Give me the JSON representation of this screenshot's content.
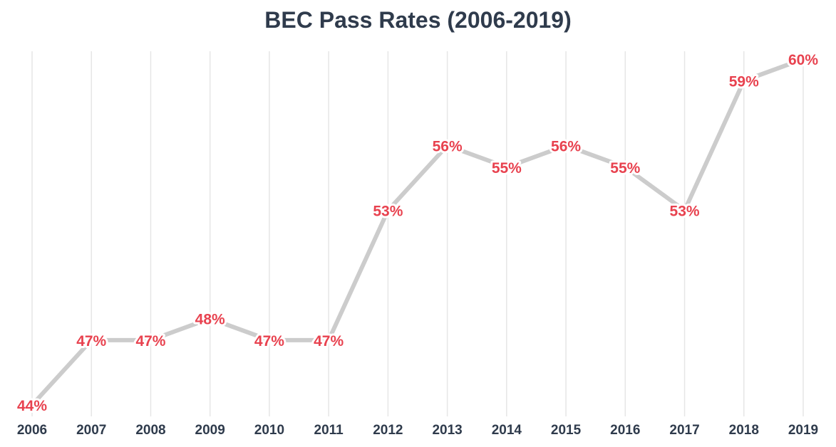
{
  "colors": {
    "title": "#2f3b4c",
    "tick": "#2f3b4c",
    "label": "#e8424f",
    "line": "#cccccc",
    "grid": "#e6e6e6"
  },
  "chart_data": {
    "type": "line",
    "title": "BEC Pass Rates (2006-2019)",
    "xlabel": "",
    "ylabel": "",
    "grid": "vertical",
    "categories": [
      "2006",
      "2007",
      "2008",
      "2009",
      "2010",
      "2011",
      "2012",
      "2013",
      "2014",
      "2015",
      "2016",
      "2017",
      "2018",
      "2019"
    ],
    "series": [
      {
        "values": [
          44,
          47,
          47,
          48,
          47,
          47,
          53,
          56,
          55,
          56,
          55,
          53,
          59,
          60
        ],
        "labels": [
          "44%",
          "47%",
          "47%",
          "48%",
          "47%",
          "47%",
          "53%",
          "56%",
          "55%",
          "56%",
          "55%",
          "53%",
          "59%",
          "60%"
        ]
      }
    ]
  }
}
